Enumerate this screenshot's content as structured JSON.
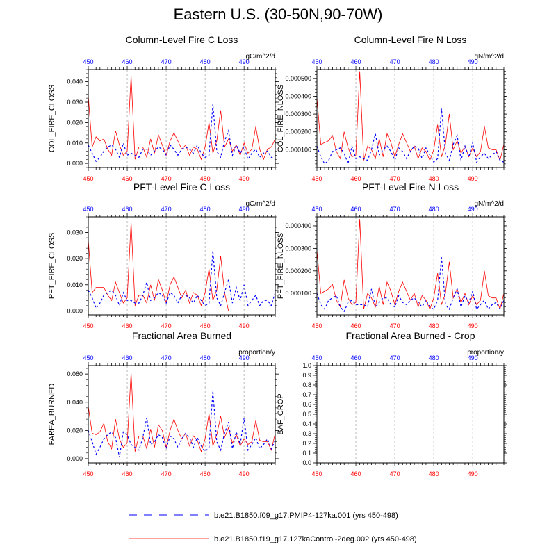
{
  "figure": {
    "title": "Eastern U.S. (30-50N,90-70W)",
    "colors": {
      "series_a": "#0000ff",
      "series_b": "#ff0000",
      "grid": "#aaaaaa"
    }
  },
  "legend": [
    {
      "label": "b.e21.B1850.f09_g17.PMIP4-127ka.001 (yrs 450-498)",
      "color": "#0000ff",
      "style": "dashed"
    },
    {
      "label": "b.e21.B1850.f19_g17.127kaControl-2deg.002 (yrs 450-498)",
      "color": "#ff0000",
      "style": "solid"
    }
  ],
  "chart_data": [
    {
      "type": "line",
      "title": "Column-Level Fire C Loss",
      "ylabel": "COL_FIRE_CLOSS",
      "units": "gC/m^2/d",
      "xlim": [
        450,
        498
      ],
      "ylim": [
        -0.002,
        0.046
      ],
      "yticks": [
        "0.000",
        "0.010",
        "0.020",
        "0.030",
        "0.040"
      ],
      "ytick_values": [
        0,
        0.01,
        0.02,
        0.03,
        0.04
      ],
      "xticks": [
        450,
        460,
        470,
        480,
        490
      ],
      "top_xticks": [
        450,
        460,
        470,
        480,
        490
      ],
      "grid_x": true,
      "x": [
        450,
        451,
        452,
        453,
        454,
        455,
        456,
        457,
        458,
        459,
        460,
        461,
        462,
        463,
        464,
        465,
        466,
        467,
        468,
        469,
        470,
        471,
        472,
        473,
        474,
        475,
        476,
        477,
        478,
        479,
        480,
        481,
        482,
        483,
        484,
        485,
        486,
        487,
        488,
        489,
        490,
        491,
        492,
        493,
        494,
        495,
        496,
        497,
        498
      ],
      "series": [
        {
          "values": [
            0.009,
            0.005,
            0.001,
            0.003,
            0.006,
            0.008,
            0.009,
            0.007,
            0.003,
            0.01,
            0.004,
            0.005,
            0.004,
            0.003,
            0.007,
            0.007,
            0.004,
            0.006,
            0.008,
            0.007,
            0.004,
            0.009,
            0.007,
            0.004,
            0.007,
            0.008,
            0.007,
            0.005,
            0.009,
            0.005,
            0.003,
            0.004,
            0.029,
            0.006,
            0.003,
            0.011,
            0.016,
            0.004,
            0.009,
            0.005,
            0.008,
            0.002,
            0.005,
            0.007,
            0.003,
            0.005,
            0.006,
            0.003,
            0.002
          ]
        },
        {
          "values": [
            0.033,
            0.008,
            0.013,
            0.011,
            0.012,
            0.007,
            0.004,
            0.016,
            0.009,
            0.004,
            0.006,
            0.043,
            0.002,
            0.008,
            0.008,
            0.003,
            0.012,
            0.005,
            0.014,
            0.009,
            0.004,
            0.011,
            0.015,
            0.011,
            0.007,
            0.009,
            0.004,
            0.008,
            0.007,
            0.002,
            0.008,
            0.02,
            0.005,
            0.011,
            0.026,
            0.008,
            0.012,
            0.006,
            0.009,
            0.004,
            0.01,
            0.005,
            0.007,
            0.018,
            0.007,
            0.002,
            0.007,
            0.008,
            0.012
          ]
        }
      ]
    },
    {
      "type": "line",
      "title": "Column-Level Fire N Loss",
      "ylabel": "COL_FIRE_NLOSS",
      "units": "gN/m^2/d",
      "xlim": [
        450,
        498
      ],
      "ylim": [
        0.0,
        0.00055
      ],
      "yticks": [
        "0.000100",
        "0.000200",
        "0.000300",
        "0.000400",
        "0.000500"
      ],
      "ytick_values": [
        0.0001,
        0.0002,
        0.0003,
        0.0004,
        0.0005
      ],
      "xticks": [
        450,
        460,
        470,
        480,
        490
      ],
      "top_xticks": [
        450,
        460,
        470,
        480,
        490
      ],
      "grid_x": true,
      "x": [
        450,
        451,
        452,
        453,
        454,
        455,
        456,
        457,
        458,
        459,
        460,
        461,
        462,
        463,
        464,
        465,
        466,
        467,
        468,
        469,
        470,
        471,
        472,
        473,
        474,
        475,
        476,
        477,
        478,
        479,
        480,
        481,
        482,
        483,
        484,
        485,
        486,
        487,
        488,
        489,
        490,
        491,
        492,
        493,
        494,
        495,
        496,
        497,
        498
      ],
      "series": [
        {
          "values": [
            0.00012,
            6e-05,
            2e-05,
            4e-05,
            9e-05,
            0.0001,
            0.00011,
            8e-05,
            2e-05,
            0.00012,
            5e-05,
            6e-05,
            5e-05,
            4e-05,
            0.0001,
            0.00019,
            7e-05,
            0.0001,
            0.00012,
            9e-05,
            4e-05,
            0.00011,
            9e-05,
            5e-05,
            9e-05,
            0.00012,
            0.00011,
            5e-05,
            0.00011,
            7e-05,
            3e-05,
            5e-05,
            0.00033,
            8e-05,
            4e-05,
            0.00013,
            0.00018,
            4e-05,
            0.00012,
            6e-05,
            0.00014,
            3e-05,
            6e-05,
            8e-05,
            5e-05,
            7e-05,
            9e-05,
            4e-05,
            3e-05
          ]
        },
        {
          "values": [
            0.00039,
            0.00013,
            0.00014,
            0.00015,
            0.00018,
            9e-05,
            5e-05,
            0.0002,
            0.00011,
            6e-05,
            7e-05,
            0.00054,
            4e-05,
            0.00012,
            0.0001,
            5e-05,
            0.00016,
            6e-05,
            0.00019,
            0.00014,
            6e-05,
            0.00013,
            0.00019,
            0.00014,
            9e-05,
            0.00012,
            5e-05,
            0.00011,
            9e-05,
            4e-05,
            0.0001,
            0.00024,
            6e-05,
            0.00013,
            0.0003,
            0.0001,
            0.00015,
            8e-05,
            0.00012,
            6e-05,
            0.00011,
            6e-05,
            9e-05,
            0.00023,
            0.00011,
            0.0001,
            0.0001,
            4e-05,
            0.00013
          ]
        }
      ]
    },
    {
      "type": "line",
      "title": "PFT-Level Fire C Loss",
      "ylabel": "PFT_FIRE_CLOSS",
      "units": "gC/m^2/d",
      "xlim": [
        450,
        498
      ],
      "ylim": [
        -0.0015,
        0.036
      ],
      "yticks": [
        "0.000",
        "0.010",
        "0.020",
        "0.030"
      ],
      "ytick_values": [
        0,
        0.01,
        0.02,
        0.03
      ],
      "xticks": [
        450,
        460,
        470,
        480,
        490
      ],
      "top_xticks": [
        450,
        460,
        470,
        480,
        490
      ],
      "grid_x": true,
      "x": [
        450,
        451,
        452,
        453,
        454,
        455,
        456,
        457,
        458,
        459,
        460,
        461,
        462,
        463,
        464,
        465,
        466,
        467,
        468,
        469,
        470,
        471,
        472,
        473,
        474,
        475,
        476,
        477,
        478,
        479,
        480,
        481,
        482,
        483,
        484,
        485,
        486,
        487,
        488,
        489,
        490,
        491,
        492,
        493,
        494,
        495,
        496,
        497,
        498
      ],
      "series": [
        {
          "values": [
            0.008,
            0.005,
            0.001,
            0.003,
            0.006,
            0.007,
            0.008,
            0.006,
            0.002,
            0.007,
            0.004,
            0.004,
            0.003,
            0.003,
            0.006,
            0.011,
            0.004,
            0.005,
            0.007,
            0.006,
            0.003,
            0.007,
            0.006,
            0.003,
            0.006,
            0.006,
            0.005,
            0.003,
            0.006,
            0.004,
            0.002,
            0.003,
            0.023,
            0.005,
            0.002,
            0.007,
            0.012,
            0.003,
            0.009,
            0.004,
            0.01,
            0.002,
            0.004,
            0.006,
            0.002,
            0.004,
            0.004,
            0.002,
            0.007
          ]
        },
        {
          "values": [
            0.027,
            0.007,
            0.009,
            0.009,
            0.009,
            0.006,
            0.004,
            0.011,
            0.007,
            0.003,
            0.005,
            0.034,
            0.002,
            0.006,
            0.006,
            0.003,
            0.01,
            0.004,
            0.012,
            0.008,
            0.003,
            0.01,
            0.013,
            0.009,
            0.005,
            0.008,
            0.003,
            0.007,
            0.006,
            0.002,
            0.007,
            0.016,
            0.004,
            0.008,
            0.021,
            0.007,
            0.0,
            0.0,
            0.0,
            0.0,
            0.0,
            0.0,
            0.0,
            0.0,
            0.0,
            0.0,
            0.0,
            0.0,
            0.0
          ]
        }
      ]
    },
    {
      "type": "line",
      "title": "PFT-Level Fire N Loss",
      "ylabel": "PFT_FIRE_NLOSS",
      "units": "gN/m^2/d",
      "xlim": [
        450,
        498
      ],
      "ylim": [
        5e-06,
        0.00044
      ],
      "yticks": [
        "0.000100",
        "0.000200",
        "0.000300",
        "0.000400"
      ],
      "ytick_values": [
        0.0001,
        0.0002,
        0.0003,
        0.0004
      ],
      "xticks": [
        450,
        460,
        470,
        480,
        490
      ],
      "top_xticks": [
        450,
        460,
        470,
        480,
        490
      ],
      "grid_x": true,
      "x": [
        450,
        451,
        452,
        453,
        454,
        455,
        456,
        457,
        458,
        459,
        460,
        461,
        462,
        463,
        464,
        465,
        466,
        467,
        468,
        469,
        470,
        471,
        472,
        473,
        474,
        475,
        476,
        477,
        478,
        479,
        480,
        481,
        482,
        483,
        484,
        485,
        486,
        487,
        488,
        489,
        490,
        491,
        492,
        493,
        494,
        495,
        496,
        497,
        498
      ],
      "series": [
        {
          "values": [
            0.0001,
            5e-05,
            3e-05,
            7e-05,
            8e-05,
            9e-05,
            4e-05,
            2e-05,
            6e-05,
            7e-05,
            5e-05,
            5e-05,
            5e-05,
            4e-05,
            0.00012,
            4e-05,
            6e-05,
            8e-05,
            8e-05,
            5e-05,
            4e-05,
            9e-05,
            6e-05,
            5e-05,
            7e-05,
            8e-05,
            6e-05,
            4e-05,
            7e-05,
            4e-05,
            3e-05,
            7e-05,
            0.00026,
            5e-05,
            3e-05,
            8e-05,
            0.00012,
            4e-05,
            9e-05,
            6e-05,
            0.00011,
            3e-05,
            5e-05,
            7e-05,
            3e-05,
            5e-05,
            6e-05,
            3e-05,
            7e-05
          ]
        },
        {
          "values": [
            0.00029,
            0.0001,
            0.00011,
            0.00012,
            0.00014,
            7e-05,
            4e-05,
            0.00016,
            8e-05,
            5e-05,
            6e-05,
            0.00043,
            3e-05,
            0.0001,
            8e-05,
            4e-05,
            0.00013,
            5e-05,
            0.00015,
            0.00011,
            5e-05,
            0.00011,
            0.00015,
            0.00011,
            7e-05,
            0.0001,
            4e-05,
            9e-05,
            7e-05,
            3e-05,
            8e-05,
            0.00019,
            5e-05,
            0.0001,
            0.00024,
            8e-05,
            0.00012,
            6e-05,
            0.0001,
            5e-05,
            9e-05,
            5e-05,
            7e-05,
            0.0002,
            9e-05,
            8e-05,
            8e-05,
            3e-05,
            0.0001
          ]
        }
      ]
    },
    {
      "type": "line",
      "title": "Fractional Area Burned",
      "ylabel": "FAREA_BURNED",
      "units": "proportion/y",
      "xlim": [
        450,
        498
      ],
      "ylim": [
        -0.003,
        0.066
      ],
      "yticks": [
        "0.000",
        "0.020",
        "0.040",
        "0.060"
      ],
      "ytick_values": [
        0,
        0.02,
        0.04,
        0.06
      ],
      "xticks": [
        450,
        460,
        470,
        480,
        490
      ],
      "top_xticks": [
        450,
        460,
        470,
        480,
        490
      ],
      "grid_x": true,
      "x": [
        450,
        451,
        452,
        453,
        454,
        455,
        456,
        457,
        458,
        459,
        460,
        461,
        462,
        463,
        464,
        465,
        466,
        467,
        468,
        469,
        470,
        471,
        472,
        473,
        474,
        475,
        476,
        477,
        478,
        479,
        480,
        481,
        482,
        483,
        484,
        485,
        486,
        487,
        488,
        489,
        490,
        491,
        492,
        493,
        494,
        495,
        496,
        497,
        498
      ],
      "series": [
        {
          "values": [
            0.02,
            0.012,
            0.003,
            0.008,
            0.014,
            0.017,
            0.019,
            0.015,
            0.001,
            0.019,
            0.017,
            0.01,
            0.008,
            0.006,
            0.015,
            0.029,
            0.01,
            0.012,
            0.017,
            0.015,
            0.007,
            0.016,
            0.014,
            0.008,
            0.014,
            0.018,
            0.015,
            0.008,
            0.015,
            0.009,
            0.005,
            0.008,
            0.048,
            0.012,
            0.006,
            0.018,
            0.026,
            0.007,
            0.019,
            0.01,
            0.029,
            0.006,
            0.01,
            0.015,
            0.007,
            0.01,
            0.014,
            0.007,
            0.013
          ]
        },
        {
          "values": [
            0.037,
            0.018,
            0.017,
            0.019,
            0.025,
            0.012,
            0.007,
            0.028,
            0.014,
            0.008,
            0.011,
            0.061,
            0.005,
            0.016,
            0.016,
            0.007,
            0.021,
            0.008,
            0.024,
            0.02,
            0.008,
            0.02,
            0.028,
            0.02,
            0.014,
            0.018,
            0.009,
            0.016,
            0.013,
            0.005,
            0.014,
            0.032,
            0.009,
            0.017,
            0.03,
            0.015,
            0.022,
            0.011,
            0.017,
            0.009,
            0.014,
            0.01,
            0.012,
            0.027,
            0.013,
            0.012,
            0.012,
            0.006,
            0.018
          ]
        }
      ]
    },
    {
      "type": "line",
      "title": "Fractional Area Burned - Crop",
      "ylabel": "BAF_CROP",
      "units": "proportion/y",
      "xlim": [
        450,
        498
      ],
      "ylim": [
        0,
        1
      ],
      "yticks": [
        "0.0",
        "0.1",
        "0.2",
        "0.3",
        "0.4",
        "0.5",
        "0.6",
        "0.7",
        "0.8",
        "0.9",
        "1.0"
      ],
      "ytick_values": [
        0,
        0.1,
        0.2,
        0.3,
        0.4,
        0.5,
        0.6,
        0.7,
        0.8,
        0.9,
        1.0
      ],
      "xticks": [
        450,
        460,
        470,
        480,
        490
      ],
      "top_xticks": [
        450,
        460,
        470,
        480,
        490
      ],
      "grid_x": true,
      "x": [],
      "series": []
    }
  ]
}
